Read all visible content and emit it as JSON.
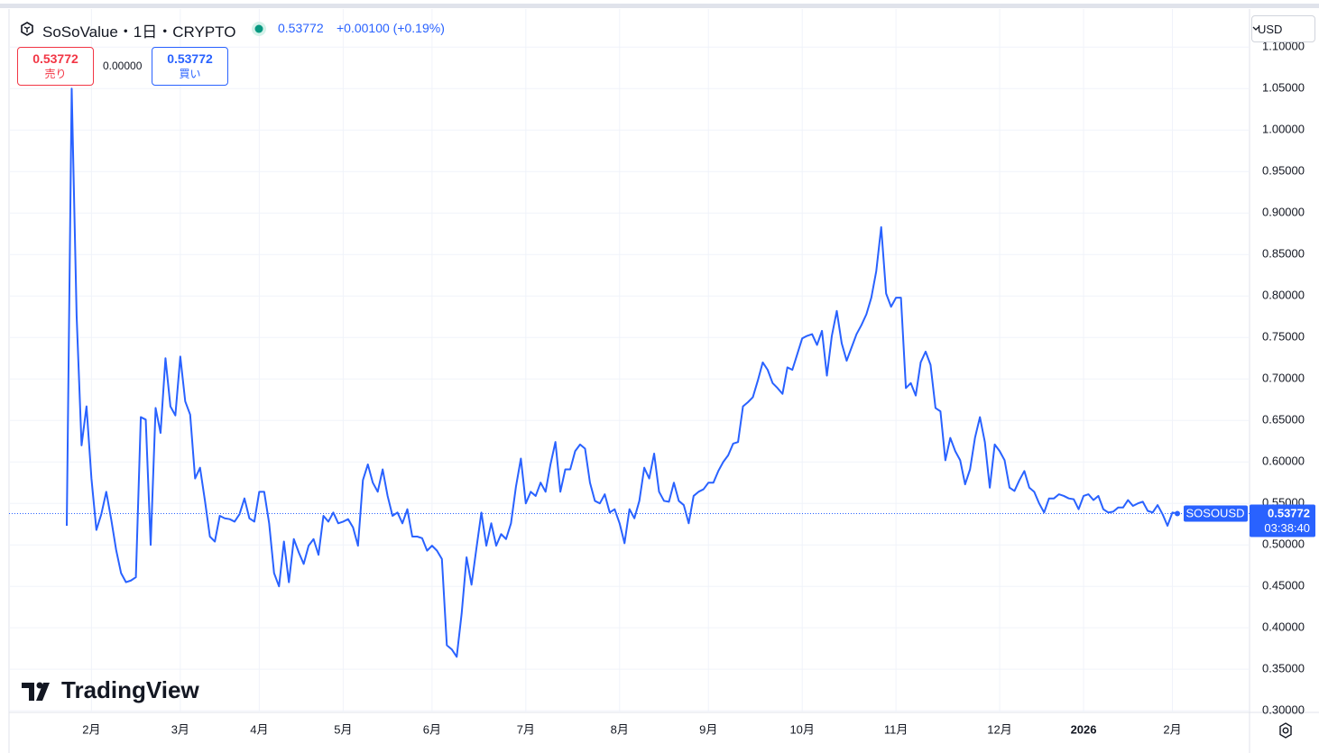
{
  "header": {
    "symbol": "SoSoValue・1日・CRYPTO",
    "price": "0.53772",
    "change": "+0.00100 (+0.19%)",
    "sell": {
      "value": "0.53772",
      "label": "売り"
    },
    "spread": "0.00000",
    "buy": {
      "value": "0.53772",
      "label": "買い"
    },
    "currency": "USD",
    "watermark": "TradingView"
  },
  "chart_data": {
    "type": "line",
    "categories": [
      null,
      null,
      null,
      null,
      null,
      "2月",
      null,
      null,
      null,
      null,
      null,
      null,
      null,
      null,
      null,
      null,
      null,
      null,
      null,
      null,
      null,
      null,
      null,
      "3月",
      null,
      null,
      null,
      null,
      null,
      null,
      null,
      null,
      null,
      null,
      null,
      null,
      null,
      null,
      null,
      "4月",
      null,
      null,
      null,
      null,
      null,
      null,
      null,
      null,
      null,
      null,
      null,
      null,
      null,
      null,
      null,
      null,
      "5月",
      null,
      null,
      null,
      null,
      null,
      null,
      null,
      null,
      null,
      null,
      null,
      null,
      null,
      null,
      null,
      null,
      null,
      "6月",
      null,
      null,
      null,
      null,
      null,
      null,
      null,
      null,
      null,
      null,
      null,
      null,
      null,
      null,
      null,
      null,
      null,
      null,
      "7月",
      null,
      null,
      null,
      null,
      null,
      null,
      null,
      null,
      null,
      null,
      null,
      null,
      null,
      null,
      null,
      null,
      null,
      null,
      "8月",
      null,
      null,
      null,
      null,
      null,
      null,
      null,
      null,
      null,
      null,
      null,
      null,
      null,
      null,
      null,
      null,
      null,
      "9月",
      null,
      null,
      null,
      null,
      null,
      null,
      null,
      null,
      null,
      null,
      null,
      null,
      null,
      null,
      null,
      null,
      null,
      null,
      "10月",
      null,
      null,
      null,
      null,
      null,
      null,
      null,
      null,
      null,
      null,
      null,
      null,
      null,
      null,
      null,
      null,
      null,
      null,
      "11月",
      null,
      null,
      null,
      null,
      null,
      null,
      null,
      null,
      null,
      null,
      null,
      null,
      null,
      null,
      null,
      null,
      null,
      null,
      null,
      null,
      "12月",
      null,
      null,
      null,
      null,
      null,
      null,
      null,
      null,
      null,
      null,
      null,
      null,
      null,
      null,
      null,
      null,
      "2026",
      null,
      null,
      null,
      null,
      null,
      null,
      null,
      null,
      null,
      null,
      null,
      null,
      null,
      null,
      null,
      null,
      null,
      "2月",
      null
    ],
    "series": [
      {
        "name": "SOSOUSD",
        "color": "#2962ff",
        "values": [
          0.523,
          1.05,
          0.776,
          0.62,
          0.667,
          0.58,
          0.518,
          0.537,
          0.564,
          0.531,
          0.494,
          0.466,
          0.455,
          0.457,
          0.461,
          0.654,
          0.651,
          0.5,
          0.665,
          0.635,
          0.725,
          0.667,
          0.656,
          0.727,
          0.673,
          0.657,
          0.58,
          0.593,
          0.553,
          0.51,
          0.504,
          0.535,
          0.532,
          0.531,
          0.528,
          0.537,
          0.556,
          0.532,
          0.528,
          0.564,
          0.564,
          0.526,
          0.466,
          0.45,
          0.504,
          0.455,
          0.507,
          0.491,
          0.477,
          0.499,
          0.507,
          0.488,
          0.535,
          0.528,
          0.539,
          0.526,
          0.528,
          0.531,
          0.521,
          0.499,
          0.578,
          0.597,
          0.575,
          0.564,
          0.591,
          0.559,
          0.535,
          0.539,
          0.526,
          0.543,
          0.51,
          0.51,
          0.508,
          0.493,
          0.499,
          0.493,
          0.483,
          0.379,
          0.374,
          0.365,
          0.417,
          0.485,
          0.452,
          0.496,
          0.539,
          0.499,
          0.526,
          0.499,
          0.513,
          0.507,
          0.526,
          0.57,
          0.604,
          0.55,
          0.564,
          0.559,
          0.575,
          0.564,
          0.597,
          0.624,
          0.564,
          0.591,
          0.591,
          0.613,
          0.621,
          0.616,
          0.575,
          0.553,
          0.55,
          0.561,
          0.539,
          0.543,
          0.526,
          0.502,
          0.543,
          0.532,
          0.553,
          0.593,
          0.58,
          0.61,
          0.564,
          0.553,
          0.552,
          0.575,
          0.553,
          0.548,
          0.526,
          0.559,
          0.564,
          0.567,
          0.575,
          0.575,
          0.589,
          0.6,
          0.608,
          0.622,
          0.624,
          0.667,
          0.672,
          0.678,
          0.698,
          0.72,
          0.711,
          0.695,
          0.689,
          0.682,
          0.714,
          0.711,
          0.73,
          0.749,
          0.752,
          0.754,
          0.741,
          0.758,
          0.704,
          0.752,
          0.782,
          0.743,
          0.722,
          0.738,
          0.754,
          0.765,
          0.778,
          0.798,
          0.83,
          0.883,
          0.803,
          0.787,
          0.798,
          0.798,
          0.689,
          0.695,
          0.68,
          0.72,
          0.733,
          0.717,
          0.665,
          0.661,
          0.602,
          0.629,
          0.613,
          0.602,
          0.573,
          0.591,
          0.629,
          0.654,
          0.624,
          0.569,
          0.621,
          0.613,
          0.602,
          0.569,
          0.565,
          0.578,
          0.589,
          0.569,
          0.564,
          0.55,
          0.539,
          0.556,
          0.556,
          0.561,
          0.559,
          0.556,
          0.555,
          0.543,
          0.559,
          0.561,
          0.554,
          0.559,
          0.543,
          0.539,
          0.54,
          0.545,
          0.545,
          0.554,
          0.547,
          0.55,
          0.552,
          0.541,
          0.539,
          0.548,
          0.537,
          0.523,
          0.539,
          0.53772
        ]
      }
    ],
    "last_price": {
      "label": "0.53772",
      "countdown": "03:38:40"
    },
    "ylim": [
      0.298,
      1.146
    ],
    "yticks": [
      {
        "value": 0.3,
        "label": "0.30000"
      },
      {
        "value": 0.35,
        "label": "0.35000"
      },
      {
        "value": 0.4,
        "label": "0.40000"
      },
      {
        "value": 0.45,
        "label": "0.45000"
      },
      {
        "value": 0.5,
        "label": "0.50000"
      },
      {
        "value": 0.55,
        "label": "0.55000"
      },
      {
        "value": 0.6,
        "label": "0.60000"
      },
      {
        "value": 0.65,
        "label": "0.65000"
      },
      {
        "value": 0.7,
        "label": "0.70000"
      },
      {
        "value": 0.75,
        "label": "0.75000"
      },
      {
        "value": 0.8,
        "label": "0.80000"
      },
      {
        "value": 0.85,
        "label": "0.85000"
      },
      {
        "value": 0.9,
        "label": "0.90000"
      },
      {
        "value": 0.95,
        "label": "0.95000"
      },
      {
        "value": 1.0,
        "label": "1.00000"
      },
      {
        "value": 1.05,
        "label": "1.05000"
      },
      {
        "value": 1.1,
        "label": "1.10000"
      }
    ],
    "grid": true
  }
}
